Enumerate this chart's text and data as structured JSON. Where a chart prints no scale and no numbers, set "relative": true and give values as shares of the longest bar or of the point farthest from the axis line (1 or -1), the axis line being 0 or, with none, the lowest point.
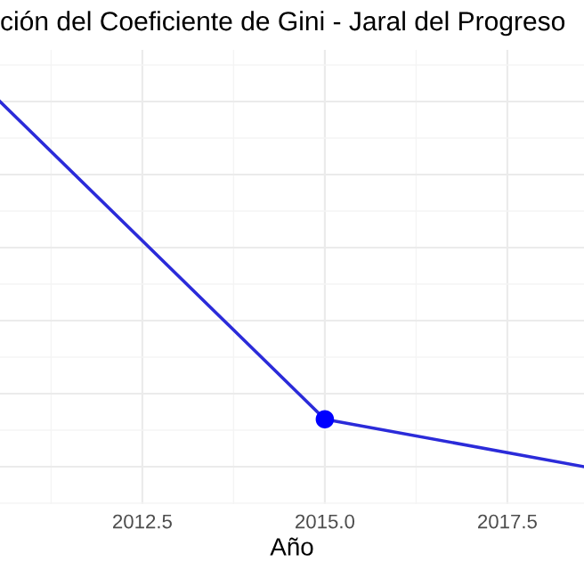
{
  "chart_data": {
    "type": "line",
    "title": "ción del Coeficiente de Gini - Jaral del Progreso",
    "xlabel": "Año",
    "relative": true,
    "series": [
      {
        "color": "#2b2bd9",
        "x": [
          2010.55,
          2015,
          2018.55
        ],
        "values": [
          1,
          0.13,
          0
        ],
        "marker": "none"
      },
      {
        "type": "scatter",
        "color": "#0000ff",
        "x": [
          2015
        ],
        "values": [
          0.13
        ],
        "marker": "circle"
      }
    ],
    "xlim": [
      2010.55,
      2018.55
    ],
    "xticks": [
      {
        "value": 2012.5,
        "label": "2012.5"
      },
      {
        "value": 2015,
        "label": "2015.0"
      },
      {
        "value": 2017.5,
        "label": "2017.5"
      }
    ],
    "grid": true,
    "tick_labels": "x"
  }
}
